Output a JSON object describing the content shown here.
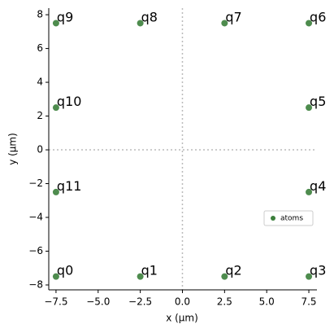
{
  "chart_data": {
    "type": "scatter",
    "x_label": "x (µm)",
    "y_label": "y (µm)",
    "series": [
      {
        "name": "atoms",
        "color": "#3b7f3b",
        "x": [
          -7.5,
          -2.5,
          2.5,
          7.5,
          7.5,
          7.5,
          7.5,
          2.5,
          -2.5,
          -7.5,
          -7.5,
          -7.5
        ],
        "values": [
          -7.5,
          -7.5,
          -7.5,
          -7.5,
          -2.5,
          2.5,
          7.5,
          7.5,
          7.5,
          7.5,
          2.5,
          -2.5
        ],
        "labels": [
          "q0",
          "q1",
          "q2",
          "q3",
          "q4",
          "q5",
          "q6",
          "q7",
          "q8",
          "q9",
          "q10",
          "q11"
        ]
      }
    ],
    "xlim": [
      -7.93,
      7.98
    ],
    "ylim": [
      -8.29,
      8.39
    ],
    "xticks": [
      {
        "value": -7.5,
        "label": "−7.5"
      },
      {
        "value": -5,
        "label": "−5.0"
      },
      {
        "value": -2.5,
        "label": "−2.5"
      },
      {
        "value": 0,
        "label": "0.0"
      },
      2.5,
      {
        "value": 5,
        "label": "5.0"
      },
      7.5
    ],
    "yticks": [
      {
        "value": -8,
        "label": "−8"
      },
      {
        "value": -6,
        "label": "−6"
      },
      {
        "value": -4,
        "label": "−4"
      },
      {
        "value": -2,
        "label": "−2"
      },
      0,
      2,
      4,
      6,
      8
    ],
    "origin_lines": true,
    "legend_loc": "right"
  }
}
